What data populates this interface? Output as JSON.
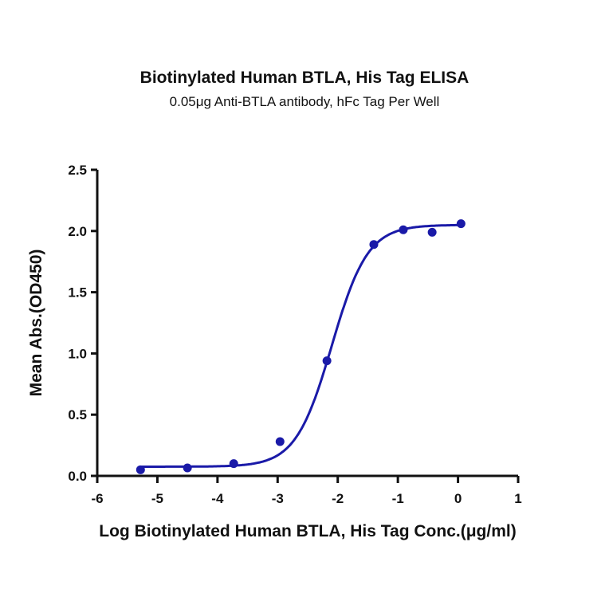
{
  "chart_data": {
    "type": "scatter",
    "title": "Biotinylated Human BTLA, His Tag ELISA",
    "subtitle": "0.05μg Anti-BTLA antibody, hFc Tag Per Well",
    "xlabel": "Log Biotinylated Human BTLA, His Tag Conc.(μg/ml)",
    "ylabel": "Mean Abs.(OD450)",
    "xlim": [
      -6,
      1
    ],
    "ylim": [
      0,
      2.5
    ],
    "x_ticks": [
      "-6",
      "-5",
      "-4",
      "-3",
      "-2",
      "-1",
      "0",
      "1"
    ],
    "y_ticks": [
      "0.0",
      "0.5",
      "1.0",
      "1.5",
      "2.0",
      "2.5"
    ],
    "grid": false,
    "legend": null,
    "series": [
      {
        "name": "Mean Abs.(OD450)",
        "color": "#1a1aa8",
        "fit": "4PL sigmoid curve",
        "x": [
          -5.28,
          -4.5,
          -3.73,
          -2.96,
          -2.18,
          -1.4,
          -0.91,
          -0.43,
          0.05
        ],
        "y": [
          0.05,
          0.065,
          0.1,
          0.28,
          0.94,
          1.89,
          2.01,
          1.99,
          2.06
        ]
      }
    ]
  }
}
